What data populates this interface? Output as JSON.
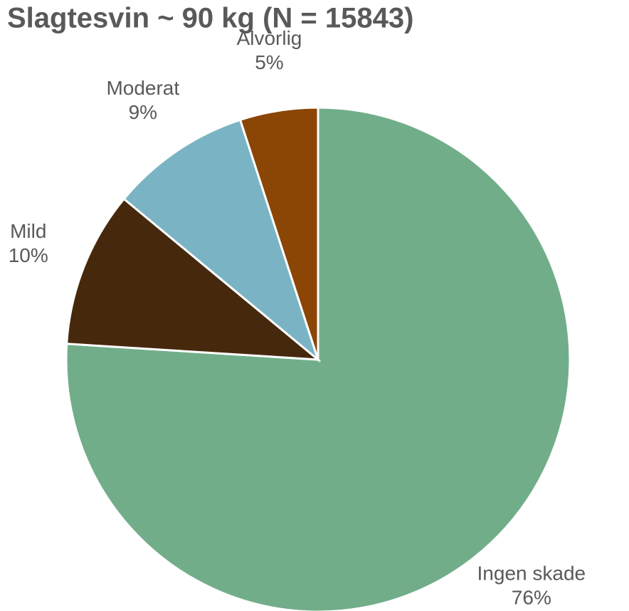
{
  "chart_data": {
    "type": "pie",
    "title": "Slagtesvin ~ 90 kg (N = 15843)",
    "categories": [
      "Ingen skade",
      "Mild",
      "Moderat",
      "Alvorlig"
    ],
    "values": [
      76,
      10,
      9,
      5
    ],
    "value_labels": [
      "76%",
      "10%",
      "9%",
      "5%"
    ],
    "colors": [
      "#72ad8a",
      "#46290c",
      "#7ab4c4",
      "#8b4505"
    ]
  }
}
